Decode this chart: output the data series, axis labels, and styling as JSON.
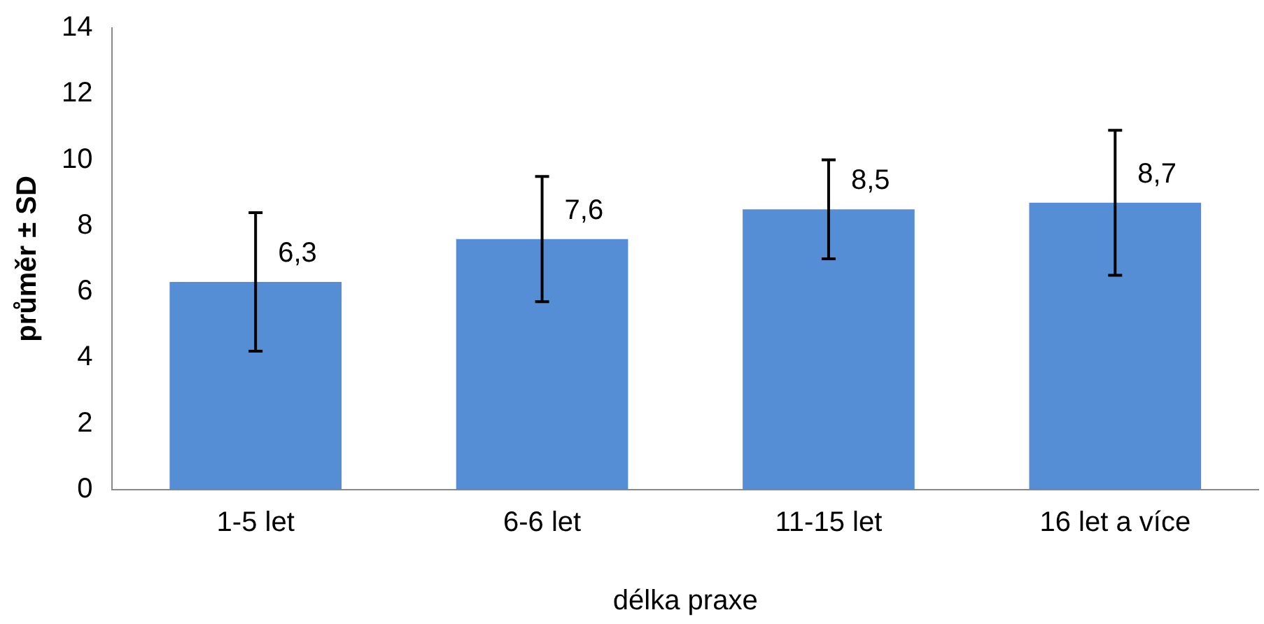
{
  "chart_data": {
    "type": "bar",
    "xlabel": "délka praxe",
    "ylabel": "průměr ± SD",
    "categories": [
      "1-5 let",
      "6-6 let",
      "11-15 let",
      "16 let a více"
    ],
    "values": [
      6.3,
      7.6,
      8.5,
      8.7
    ],
    "errors": [
      2.1,
      1.9,
      1.5,
      2.2
    ],
    "value_labels": [
      "6,3",
      "7,6",
      "8,5",
      "8,7"
    ],
    "color": "#558ed5",
    "ylim": [
      0,
      14
    ],
    "yticks": [
      0,
      2,
      4,
      6,
      8,
      10,
      12,
      14
    ],
    "grid": false,
    "legend": false
  }
}
